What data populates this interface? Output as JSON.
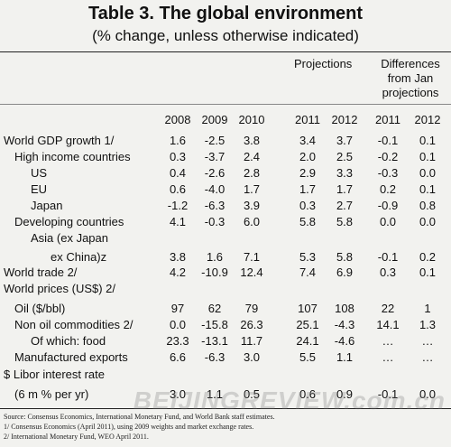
{
  "title": "Table 3. The global environment",
  "subtitle": "(% change, unless otherwise indicated)",
  "headers": {
    "projections": "Projections",
    "differences_line1": "Differences",
    "differences_line2": "from Jan",
    "differences_line3": "projections",
    "years": [
      "2008",
      "2009",
      "2010",
      "2011",
      "2012",
      "2011",
      "2012"
    ]
  },
  "rows": [
    {
      "label": "World GDP growth 1/",
      "indent": 0,
      "values": [
        "1.6",
        "-2.5",
        "3.8",
        "3.4",
        "3.7",
        "-0.1",
        "0.1"
      ]
    },
    {
      "label": "High income countries",
      "indent": 1,
      "values": [
        "0.3",
        "-3.7",
        "2.4",
        "2.0",
        "2.5",
        "-0.2",
        "0.1"
      ]
    },
    {
      "label": "US",
      "indent": 2,
      "values": [
        "0.4",
        "-2.6",
        "2.8",
        "2.9",
        "3.3",
        "-0.3",
        "0.0"
      ]
    },
    {
      "label": "EU",
      "indent": 2,
      "values": [
        "0.6",
        "-4.0",
        "1.7",
        "1.7",
        "1.7",
        "0.2",
        "0.1"
      ]
    },
    {
      "label": "Japan",
      "indent": 2,
      "values": [
        "-1.2",
        "-6.3",
        "3.9",
        "0.3",
        "2.7",
        "-0.9",
        "0.8"
      ]
    },
    {
      "label": "Developing countries",
      "indent": 1,
      "values": [
        "4.1",
        "-0.3",
        "6.0",
        "5.8",
        "5.8",
        "0.0",
        "0.0"
      ]
    },
    {
      "label": "Asia (ex Japan",
      "indent": 2,
      "values": [
        "",
        "",
        "",
        "",
        "",
        "",
        ""
      ]
    },
    {
      "label": "ex China)z",
      "indent": 3,
      "values": [
        "3.8",
        "1.6",
        "7.1",
        "5.3",
        "5.8",
        "-0.1",
        "0.2"
      ]
    },
    {
      "label": "World trade 2/",
      "indent": 0,
      "values": [
        "4.2",
        "-10.9",
        "12.4",
        "7.4",
        "6.9",
        "0.3",
        "0.1"
      ]
    },
    {
      "label": "World prices (US$) 2/",
      "indent": 0,
      "values": [
        "",
        "",
        "",
        "",
        "",
        "",
        ""
      ]
    },
    {
      "label": "Oil ($/bbl)",
      "indent": 1,
      "values": [
        "97",
        "62",
        "79",
        "107",
        "108",
        "22",
        "1"
      ]
    },
    {
      "label": "Non oil commodities 2/",
      "indent": 1,
      "values": [
        "0.0",
        "-15.8",
        "26.3",
        "25.1",
        "-4.3",
        "14.1",
        "1.3"
      ]
    },
    {
      "label": "Of which: food",
      "indent": 2,
      "values": [
        "23.3",
        "-13.1",
        "11.7",
        "24.1",
        "-4.6",
        "…",
        "…"
      ]
    },
    {
      "label": "Manufactured exports",
      "indent": 1,
      "values": [
        "6.6",
        "-6.3",
        "3.0",
        "5.5",
        "1.1",
        "…",
        "…"
      ]
    },
    {
      "label": "$ Libor interest rate",
      "indent": 0,
      "values": [
        "",
        "",
        "",
        "",
        "",
        "",
        ""
      ]
    },
    {
      "label": "(6 m % per yr)",
      "indent": 1,
      "values": [
        "3.0",
        "1.1",
        "0.5",
        "0.6",
        "0.9",
        "-0.1",
        "0.0"
      ]
    }
  ],
  "sources": [
    "Source: Consensus Economics, International Monetary Fund, and World Bank staff estimates.",
    "1/ Consensus Economics (April 2011), using 2009 weights and market exchange rates.",
    "2/ International Monetary Fund, WEO April 2011."
  ],
  "watermark": "BEIJINGREVIEW.com.cn"
}
